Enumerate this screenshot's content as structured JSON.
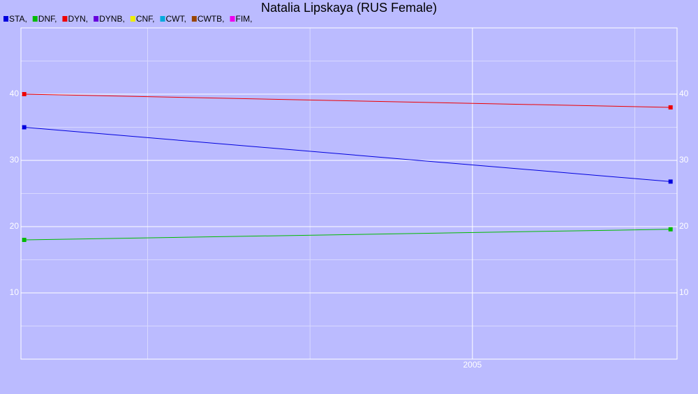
{
  "chart_data": {
    "type": "line",
    "title": "Natalia Lipskaya (RUS Female)",
    "x": [
      2003.62,
      2005.61
    ],
    "series": [
      {
        "name": "STA,",
        "color": "#0000dd",
        "values": [
          35,
          26.8
        ]
      },
      {
        "name": "DNF,",
        "color": "#00bb00",
        "values": [
          18,
          19.6
        ]
      },
      {
        "name": "DYN,",
        "color": "#ee0000",
        "values": [
          40,
          38
        ]
      },
      {
        "name": "DYNB,",
        "color": "#6600dd",
        "values": [
          null,
          null
        ]
      },
      {
        "name": "CNF,",
        "color": "#eeee00",
        "values": [
          null,
          null
        ]
      },
      {
        "name": "CWT,",
        "color": "#00aadd",
        "values": [
          null,
          null
        ]
      },
      {
        "name": "CWTB,",
        "color": "#994400",
        "values": [
          null,
          null
        ]
      },
      {
        "name": "FIM,",
        "color": "#ee00ee",
        "values": [
          null,
          null
        ]
      }
    ],
    "xlim": [
      2003.61,
      2005.63
    ],
    "xticks": [
      2005
    ],
    "xminor": [
      2004,
      2004.5,
      2005.5
    ],
    "ylim": [
      0,
      50
    ],
    "yticks": [
      10,
      20,
      30,
      40
    ],
    "yminor": [
      5,
      15,
      25,
      35,
      45
    ],
    "grid": true
  }
}
